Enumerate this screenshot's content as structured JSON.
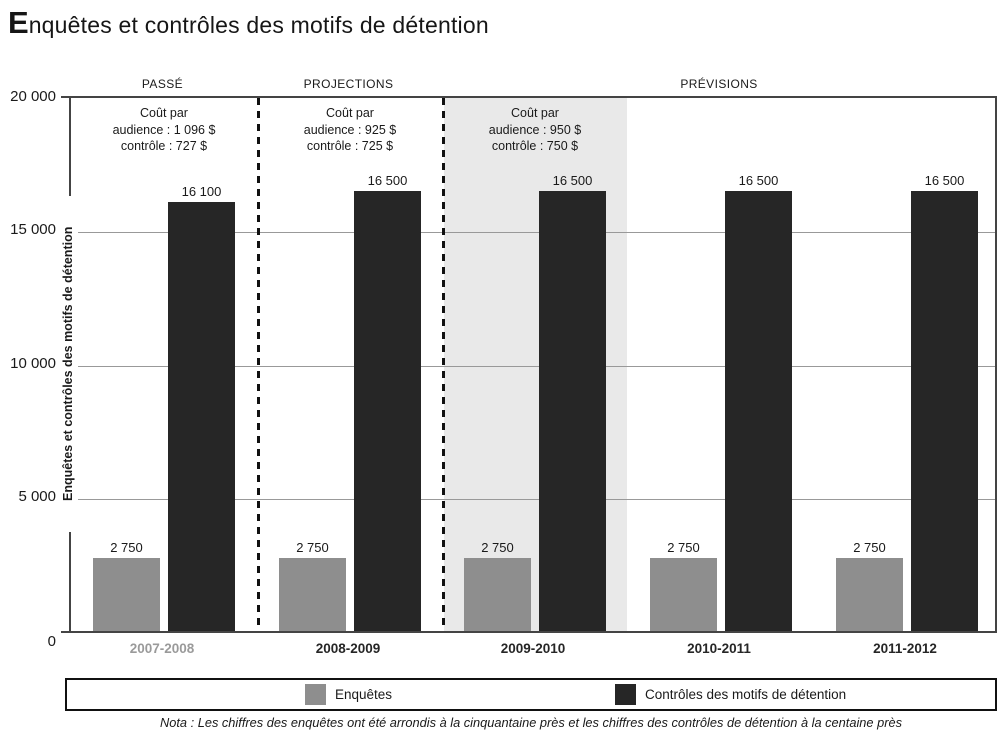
{
  "title": {
    "cap": "E",
    "rest": "nquêtes et contrôles des motifs de détention"
  },
  "sections": [
    {
      "label": "PASSÉ",
      "annotation": [
        "Coût par",
        "audience : 1 096 $",
        "contrôle : 727 $"
      ]
    },
    {
      "label": "PROJECTIONS",
      "annotation": [
        "Coût par",
        "audience : 925 $",
        "contrôle : 725 $"
      ]
    },
    {
      "label": "PRÉVISIONS",
      "annotation": [
        "Coût par",
        "audience : 950 $",
        "contrôle : 750 $"
      ]
    }
  ],
  "y_axis": {
    "label": "Enquêtes et contrôles des motifs de détention",
    "ticks": [
      "20 000",
      "15 000",
      "10 000",
      "5 000",
      "0"
    ]
  },
  "groups": [
    {
      "year": "2007-2008",
      "enquetes": "2 750",
      "controles": "16 100"
    },
    {
      "year": "2008-2009",
      "enquetes": "2 750",
      "controles": "16 500"
    },
    {
      "year": "2009-2010",
      "enquetes": "2 750",
      "controles": "16 500"
    },
    {
      "year": "2010-2011",
      "enquetes": "2 750",
      "controles": "16 500"
    },
    {
      "year": "2011-2012",
      "enquetes": "2 750",
      "controles": "16 500"
    }
  ],
  "legend": [
    {
      "label": "Enquêtes",
      "color": "#8e8e8e"
    },
    {
      "label": "Contrôles des motifs de détention",
      "color": "#262626"
    }
  ],
  "note": "Nota : Les chiffres des enquêtes ont été arrondis à la cinquantaine près et les chiffres des contrôles de détention à la centaine près",
  "colors": {
    "enquetes_bar": "#8e8e8e",
    "controles_bar": "#262626",
    "highlight_shade": "#e9e9e9",
    "gridline": "#999999",
    "past_year_label": "#9a9a9a"
  },
  "chart_data": {
    "type": "bar",
    "title": "Enquêtes et contrôles des motifs de détention",
    "categories": [
      "2007-2008",
      "2008-2009",
      "2009-2010",
      "2010-2011",
      "2011-2012"
    ],
    "series": [
      {
        "name": "Enquêtes",
        "values": [
          2750,
          2750,
          2750,
          2750,
          2750
        ],
        "color": "#8e8e8e"
      },
      {
        "name": "Contrôles des motifs de détention",
        "values": [
          16100,
          16500,
          16500,
          16500,
          16500
        ],
        "color": "#262626"
      }
    ],
    "xlabel": "",
    "ylabel": "Enquêtes et contrôles des motifs de détention",
    "ylim": [
      0,
      20000
    ],
    "yticks": [
      0,
      5000,
      10000,
      15000,
      20000
    ],
    "grid": true,
    "legend_position": "bottom",
    "highlighted_category": "2009-2010",
    "period_sections": [
      {
        "label": "PASSÉ",
        "categories": [
          "2007-2008"
        ],
        "cout_par_audience": "1 096 $",
        "cout_par_controle": "727 $"
      },
      {
        "label": "PROJECTIONS",
        "categories": [
          "2008-2009"
        ],
        "cout_par_audience": "925 $",
        "cout_par_controle": "725 $"
      },
      {
        "label": "PRÉVISIONS",
        "categories": [
          "2009-2010",
          "2010-2011",
          "2011-2012"
        ],
        "cout_par_audience": "950 $",
        "cout_par_controle": "750 $"
      }
    ],
    "note": "Nota : Les chiffres des enquêtes ont été arrondis à la cinquantaine près et les chiffres des contrôles de détention à la centaine près"
  }
}
